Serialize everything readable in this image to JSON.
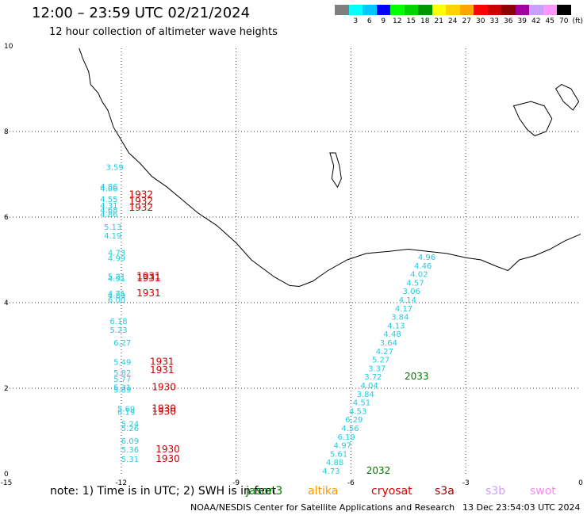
{
  "header": {
    "title": "12:00 – 23:59 UTC 02/21/2024",
    "subtitle": "12 hour collection of altimeter wave heights"
  },
  "legend": {
    "unit": "(ft)",
    "bins": [
      {
        "color": "#7f7f7f",
        "label": ""
      },
      {
        "color": "#00ffff",
        "label": "3"
      },
      {
        "color": "#00c8ff",
        "label": "6"
      },
      {
        "color": "#0000ff",
        "label": "9"
      },
      {
        "color": "#00ff00",
        "label": "12"
      },
      {
        "color": "#00d200",
        "label": "15"
      },
      {
        "color": "#009600",
        "label": "18"
      },
      {
        "color": "#ffff00",
        "label": "21"
      },
      {
        "color": "#ffd200",
        "label": "24"
      },
      {
        "color": "#ffa500",
        "label": "27"
      },
      {
        "color": "#ff0000",
        "label": "30"
      },
      {
        "color": "#c80000",
        "label": "33"
      },
      {
        "color": "#8b0000",
        "label": "36"
      },
      {
        "color": "#a000a0",
        "label": "39"
      },
      {
        "color": "#c8a0ff",
        "label": "42"
      },
      {
        "color": "#ff96ff",
        "label": "45"
      },
      {
        "color": "#000000",
        "label": "70"
      }
    ]
  },
  "map": {
    "lon_range": [
      -15,
      0
    ],
    "lat_range": [
      0,
      10
    ],
    "x_ticks": [
      "-15",
      "-12",
      "-9",
      "-6",
      "-3",
      "0"
    ],
    "y_ticks": [
      "0",
      "2",
      "4",
      "6",
      "8",
      "10"
    ],
    "obs_color": "#22ccdd",
    "west_track": [
      {
        "lon": -12.4,
        "lat": 7.1,
        "text": "3.59"
      },
      {
        "lon": -12.55,
        "lat": 6.65,
        "text": "4.86"
      },
      {
        "lon": -12.55,
        "lat": 6.6,
        "text": "4.06"
      },
      {
        "lon": -12.55,
        "lat": 6.35,
        "text": "4.55"
      },
      {
        "lon": -12.55,
        "lat": 6.2,
        "text": "4.31"
      },
      {
        "lon": -12.55,
        "lat": 6.1,
        "text": "4.68"
      },
      {
        "lon": -12.55,
        "lat": 6.0,
        "text": "4.86"
      },
      {
        "lon": -12.45,
        "lat": 5.7,
        "text": "5.13"
      },
      {
        "lon": -12.45,
        "lat": 5.5,
        "text": "4.19"
      },
      {
        "lon": -12.35,
        "lat": 5.1,
        "text": "4.73"
      },
      {
        "lon": -12.35,
        "lat": 4.97,
        "text": "4.99"
      },
      {
        "lon": -12.35,
        "lat": 4.55,
        "text": "5.21"
      },
      {
        "lon": -12.35,
        "lat": 4.5,
        "text": "4.91"
      },
      {
        "lon": -12.35,
        "lat": 4.15,
        "text": "4.71"
      },
      {
        "lon": -12.35,
        "lat": 4.1,
        "text": "4.89"
      },
      {
        "lon": -12.35,
        "lat": 4.0,
        "text": "6.00"
      },
      {
        "lon": -12.3,
        "lat": 3.5,
        "text": "6.18"
      },
      {
        "lon": -12.3,
        "lat": 3.3,
        "text": "5.23"
      },
      {
        "lon": -12.2,
        "lat": 3.0,
        "text": "6.27"
      },
      {
        "lon": -12.2,
        "lat": 2.55,
        "text": "5.49"
      },
      {
        "lon": -12.2,
        "lat": 2.3,
        "text": "5.82"
      },
      {
        "lon": -12.2,
        "lat": 2.15,
        "text": "5.77"
      },
      {
        "lon": -12.2,
        "lat": 1.95,
        "text": "5.31"
      },
      {
        "lon": -12.2,
        "lat": 1.9,
        "text": "5.89"
      },
      {
        "lon": -12.1,
        "lat": 1.45,
        "text": "5.69"
      },
      {
        "lon": -12.1,
        "lat": 1.38,
        "text": "6.19"
      },
      {
        "lon": -12.0,
        "lat": 1.1,
        "text": "5.24"
      },
      {
        "lon": -12.0,
        "lat": 1.0,
        "text": "5.26"
      },
      {
        "lon": -12.0,
        "lat": 0.7,
        "text": "6.09"
      },
      {
        "lon": -12.0,
        "lat": 0.5,
        "text": "5.36"
      },
      {
        "lon": -12.0,
        "lat": 0.28,
        "text": "5.31"
      }
    ],
    "east_track": [
      {
        "lon": -4.25,
        "lat": 5.0,
        "text": "4.96"
      },
      {
        "lon": -4.35,
        "lat": 4.8,
        "text": "4.46"
      },
      {
        "lon": -4.45,
        "lat": 4.6,
        "text": "4.02"
      },
      {
        "lon": -4.55,
        "lat": 4.4,
        "text": "4.57"
      },
      {
        "lon": -4.65,
        "lat": 4.2,
        "text": "3.06"
      },
      {
        "lon": -4.75,
        "lat": 4.0,
        "text": "4.14"
      },
      {
        "lon": -4.85,
        "lat": 3.8,
        "text": "4.17"
      },
      {
        "lon": -4.95,
        "lat": 3.6,
        "text": "3.84"
      },
      {
        "lon": -5.05,
        "lat": 3.4,
        "text": "4.13"
      },
      {
        "lon": -5.15,
        "lat": 3.2,
        "text": "4.48"
      },
      {
        "lon": -5.25,
        "lat": 3.0,
        "text": "3.64"
      },
      {
        "lon": -5.35,
        "lat": 2.8,
        "text": "4.27"
      },
      {
        "lon": -5.45,
        "lat": 2.6,
        "text": "5.27"
      },
      {
        "lon": -5.55,
        "lat": 2.4,
        "text": "3.37"
      },
      {
        "lon": -5.65,
        "lat": 2.2,
        "text": "3.72"
      },
      {
        "lon": -5.75,
        "lat": 2.0,
        "text": "4.04"
      },
      {
        "lon": -5.85,
        "lat": 1.8,
        "text": "3.84"
      },
      {
        "lon": -5.95,
        "lat": 1.6,
        "text": "4.51"
      },
      {
        "lon": -6.05,
        "lat": 1.4,
        "text": "4.53"
      },
      {
        "lon": -6.15,
        "lat": 1.2,
        "text": "6.29"
      },
      {
        "lon": -6.25,
        "lat": 1.0,
        "text": "4.56"
      },
      {
        "lon": -6.35,
        "lat": 0.8,
        "text": "6.19"
      },
      {
        "lon": -6.45,
        "lat": 0.6,
        "text": "4.97"
      },
      {
        "lon": -6.55,
        "lat": 0.4,
        "text": "5.61"
      },
      {
        "lon": -6.65,
        "lat": 0.2,
        "text": "4.88"
      },
      {
        "lon": -6.75,
        "lat": 0.0,
        "text": "4.73"
      }
    ],
    "pass_times": [
      {
        "lon": -11.8,
        "lat": 6.45,
        "text": "1932",
        "color": "#cc0000"
      },
      {
        "lon": -11.8,
        "lat": 6.3,
        "text": "1932",
        "color": "#cc0000"
      },
      {
        "lon": -11.8,
        "lat": 6.15,
        "text": "1932",
        "color": "#cc0000"
      },
      {
        "lon": -11.6,
        "lat": 4.55,
        "text": "1931",
        "color": "#cc0000"
      },
      {
        "lon": -11.6,
        "lat": 4.5,
        "text": "1931",
        "color": "#cc0000"
      },
      {
        "lon": -11.6,
        "lat": 4.15,
        "text": "1931",
        "color": "#cc0000"
      },
      {
        "lon": -11.25,
        "lat": 2.55,
        "text": "1931",
        "color": "#cc0000"
      },
      {
        "lon": -11.25,
        "lat": 2.35,
        "text": "1931",
        "color": "#cc0000"
      },
      {
        "lon": -11.2,
        "lat": 1.95,
        "text": "1930",
        "color": "#cc0000"
      },
      {
        "lon": -11.2,
        "lat": 1.45,
        "text": "1930",
        "color": "#cc0000"
      },
      {
        "lon": -11.2,
        "lat": 1.38,
        "text": "1930",
        "color": "#cc0000"
      },
      {
        "lon": -11.1,
        "lat": 0.5,
        "text": "1930",
        "color": "#cc0000"
      },
      {
        "lon": -11.1,
        "lat": 0.28,
        "text": "1930",
        "color": "#cc0000"
      },
      {
        "lon": -4.6,
        "lat": 2.2,
        "text": "2033",
        "color": "#007700"
      },
      {
        "lon": -5.6,
        "lat": 0.0,
        "text": "2032",
        "color": "#007700"
      }
    ]
  },
  "footer": {
    "note": "note:  1) Time is in UTC; 2) SWH is in feet",
    "satellites": [
      {
        "name": "jason3",
        "color": "#007700"
      },
      {
        "name": "altika",
        "color": "#ff9900"
      },
      {
        "name": "cryosat",
        "color": "#dd0000"
      },
      {
        "name": "s3a",
        "color": "#990000"
      },
      {
        "name": "s3b",
        "color": "#c8a0ff"
      },
      {
        "name": "swot",
        "color": "#ff88ee"
      }
    ],
    "credit": "NOAA/NESDIS Center for Satellite Applications and Research",
    "timestamp": "13 Dec 23:54:03 UTC 2024"
  }
}
